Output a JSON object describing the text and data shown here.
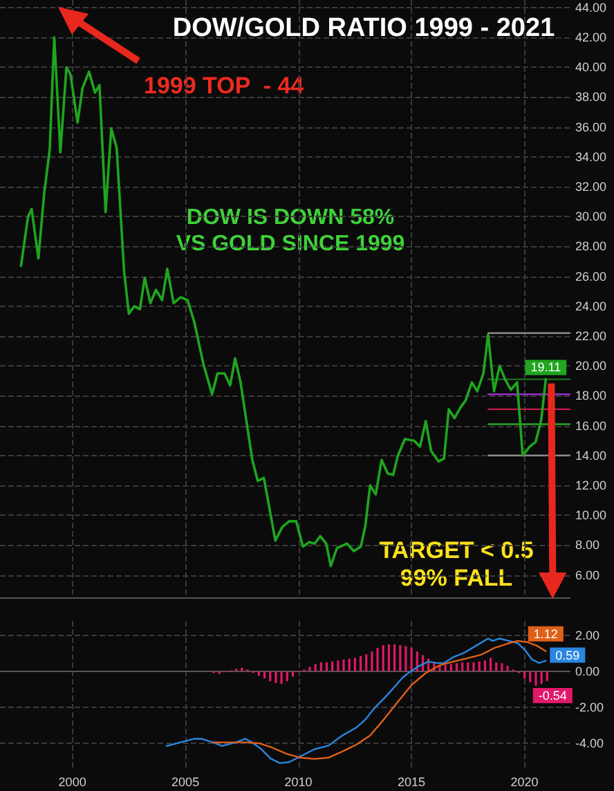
{
  "chart_data": [
    {
      "type": "line",
      "title": "DOW/GOLD RATIO 1999 - 2021",
      "annotations": [
        "1999 TOP  - 44",
        "DOW IS DOWN 58%\nVS GOLD SINCE 1999",
        {
          "text": "TARGET < 0.5\n99% FALL",
          "x": 2020.94,
          "y": 19.11
        }
      ],
      "series": [
        {
          "color": "#1fa51f",
          "x": [
            1997.73,
            1998.04,
            1998.2,
            1998.5,
            1998.75,
            1999.0,
            1999.2,
            1999.3,
            1999.47,
            1999.74,
            1999.92,
            2000.23,
            2000.45,
            2000.74,
            2001.0,
            2001.2,
            2001.47,
            2001.72,
            2001.96,
            2002.29,
            2002.5,
            2002.74,
            2002.99,
            2003.2,
            2003.45,
            2003.7,
            2003.97,
            2004.2,
            2004.48,
            2004.79,
            2005.1,
            2005.4,
            2005.8,
            2006.18,
            2006.42,
            2006.73,
            2006.98,
            2007.2,
            2007.44,
            2007.96,
            2008.2,
            2008.47,
            2008.98,
            2009.28,
            2009.59,
            2009.9,
            2010.2,
            2010.47,
            2010.72,
            2010.96,
            2011.23,
            2011.43,
            2011.7,
            2012.15,
            2012.45,
            2012.76,
            2012.96,
            2013.17,
            2013.42,
            2013.68,
            2013.95,
            2014.19,
            2014.4,
            2014.71,
            2015.11,
            2015.38,
            2015.63,
            2015.87,
            2016.2,
            2016.44,
            2016.65,
            2016.9,
            2017.16,
            2017.4,
            2017.67,
            2017.91,
            2018.18,
            2018.39,
            2018.65,
            2018.9,
            2019.14,
            2019.4,
            2019.67,
            2019.92,
            2020.23,
            2020.49,
            2020.74,
            2020.94
          ],
          "values": [
            26.7,
            30.0,
            30.5,
            27.2,
            31.5,
            34.5,
            42.0,
            39.2,
            34.3,
            40.0,
            39.5,
            36.3,
            38.6,
            39.7,
            38.3,
            38.8,
            30.3,
            35.9,
            34.6,
            26.3,
            23.5,
            24.0,
            23.8,
            25.9,
            24.2,
            25.1,
            24.4,
            26.5,
            24.2,
            24.6,
            24.4,
            22.9,
            20.1,
            18.1,
            19.5,
            19.5,
            18.7,
            20.5,
            18.9,
            13.7,
            12.3,
            12.5,
            8.3,
            9.2,
            9.6,
            9.6,
            7.9,
            8.2,
            8.1,
            8.6,
            8.1,
            6.6,
            7.8,
            8.1,
            7.6,
            7.9,
            9.3,
            12.0,
            11.4,
            13.7,
            12.8,
            12.7,
            14.0,
            15.1,
            15.0,
            14.6,
            16.3,
            14.3,
            13.6,
            13.8,
            17.1,
            16.5,
            17.2,
            17.7,
            18.9,
            18.3,
            19.5,
            22.1,
            18.3,
            20.0,
            19.1,
            18.4,
            18.9,
            14.0,
            14.6,
            14.9,
            16.4,
            19.11
          ],
          "value_labels": [
            null,
            null,
            null,
            null,
            null,
            null,
            null,
            null,
            null,
            null,
            null,
            null,
            null,
            null,
            null,
            null,
            null,
            null,
            null,
            null,
            null,
            null,
            null,
            null,
            null,
            null,
            null,
            null,
            null,
            null,
            null,
            null,
            null,
            null,
            null,
            null,
            null,
            null,
            null,
            null,
            null,
            null,
            null,
            null,
            null,
            null,
            null,
            null,
            null,
            null,
            null,
            null,
            null,
            null,
            null,
            null,
            null,
            null,
            null,
            null,
            null,
            null,
            null,
            null,
            null,
            null,
            null,
            null,
            null,
            null,
            null,
            null,
            null,
            null,
            null,
            null,
            null,
            null,
            null,
            null,
            null,
            null,
            null,
            null,
            null,
            null,
            null,
            "19.11"
          ]
        },
        {
          "color": "#8a8a8a",
          "x": [
            2018.4,
            2022.0
          ],
          "values": [
            22.2,
            22.2
          ]
        },
        {
          "color": "#1e6e1e",
          "x": [
            2018.4,
            2022.0
          ],
          "values": [
            19.1,
            19.1
          ]
        },
        {
          "color": "#9b30c8",
          "x": [
            2018.4,
            2022.0
          ],
          "values": [
            18.1,
            18.1
          ]
        },
        {
          "color": "#c8184a",
          "x": [
            2018.4,
            2022.0
          ],
          "values": [
            17.1,
            17.1
          ]
        },
        {
          "color": "#2aa52a",
          "x": [
            2018.4,
            2022.0
          ],
          "values": [
            16.1,
            16.1
          ]
        },
        {
          "color": "#8a8a8a",
          "x": [
            2018.4,
            2022.0
          ],
          "values": [
            14.0,
            14.0
          ]
        }
      ],
      "xlim": [
        1996.8,
        2022.0
      ],
      "xticks": [
        2000,
        2005,
        2010,
        2015,
        2020
      ],
      "ylim": [
        4.5,
        44.5
      ],
      "yticks": [
        {
          "value": 6,
          "label": "6.00"
        },
        {
          "value": 8,
          "label": "8.00"
        },
        {
          "value": 10,
          "label": "10.00"
        },
        {
          "value": 12,
          "label": "12.00"
        },
        {
          "value": 14,
          "label": "14.00"
        },
        {
          "value": 16,
          "label": "16.00"
        },
        {
          "value": 18,
          "label": "18.00"
        },
        {
          "value": 20,
          "label": "20.00"
        },
        {
          "value": 22,
          "label": "22.00"
        },
        {
          "value": 24,
          "label": "24.00"
        },
        {
          "value": 26,
          "label": "26.00"
        },
        {
          "value": 28,
          "label": "28.00"
        },
        {
          "value": 30,
          "label": "30.00"
        },
        {
          "value": 32,
          "label": "32.00"
        },
        {
          "value": 34,
          "label": "34.00"
        },
        {
          "value": 36,
          "label": "36.00"
        },
        {
          "value": 38,
          "label": "38.00"
        },
        {
          "value": 40,
          "label": "40.00"
        },
        {
          "value": 42,
          "label": "42.00"
        },
        {
          "value": 44,
          "label": "44.00"
        }
      ],
      "grid": true,
      "tick_labels": "y"
    },
    {
      "type": "line",
      "series": [
        {
          "type": "bar",
          "color": "#e0186a",
          "x": [
            2006.25,
            2006.5,
            2006.75,
            2007.0,
            2007.25,
            2007.5,
            2007.75,
            2008.0,
            2008.25,
            2008.5,
            2008.75,
            2009.0,
            2009.25,
            2009.5,
            2009.75,
            2010.0,
            2010.25,
            2010.5,
            2010.75,
            2011.0,
            2011.25,
            2011.5,
            2011.75,
            2012.0,
            2012.25,
            2012.5,
            2012.75,
            2013.0,
            2013.25,
            2013.5,
            2013.75,
            2014.0,
            2014.25,
            2014.5,
            2014.75,
            2015.0,
            2015.25,
            2015.5,
            2015.75,
            2016.0,
            2016.25,
            2016.5,
            2016.75,
            2017.0,
            2017.25,
            2017.5,
            2017.75,
            2018.0,
            2018.25,
            2018.5,
            2018.75,
            2019.0,
            2019.25,
            2019.5,
            2019.75,
            2020.0,
            2020.25,
            2020.5,
            2020.75,
            2021.0
          ],
          "values": [
            -0.1,
            -0.15,
            -0.05,
            0.05,
            0.15,
            0.2,
            0.1,
            -0.1,
            -0.25,
            -0.4,
            -0.55,
            -0.65,
            -0.7,
            -0.55,
            -0.3,
            -0.05,
            0.1,
            0.25,
            0.4,
            0.5,
            0.5,
            0.55,
            0.6,
            0.65,
            0.7,
            0.75,
            0.85,
            0.95,
            1.1,
            1.3,
            1.45,
            1.5,
            1.5,
            1.45,
            1.4,
            1.3,
            1.1,
            0.9,
            0.7,
            0.5,
            0.35,
            0.35,
            0.4,
            0.45,
            0.5,
            0.5,
            0.5,
            0.55,
            0.6,
            0.75,
            0.5,
            0.45,
            0.3,
            0.1,
            -0.1,
            -0.4,
            -0.6,
            -0.8,
            -0.7,
            -0.54
          ],
          "value_labels": [
            null,
            null,
            null,
            null,
            null,
            null,
            null,
            null,
            null,
            null,
            null,
            null,
            null,
            null,
            null,
            null,
            null,
            null,
            null,
            null,
            null,
            null,
            null,
            null,
            null,
            null,
            null,
            null,
            null,
            null,
            null,
            null,
            null,
            null,
            null,
            null,
            null,
            null,
            null,
            null,
            null,
            null,
            null,
            null,
            null,
            null,
            null,
            null,
            null,
            null,
            null,
            null,
            null,
            null,
            null,
            null,
            null,
            null,
            null,
            "-0.54"
          ]
        },
        {
          "color": "#2a86e0",
          "x": [
            2004.17,
            2004.78,
            2005.4,
            2005.7,
            2006.21,
            2006.62,
            2007.24,
            2007.65,
            2007.95,
            2008.36,
            2008.77,
            2009.18,
            2009.59,
            2010.1,
            2010.71,
            2011.33,
            2011.94,
            2012.56,
            2012.97,
            2013.37,
            2013.78,
            2014.19,
            2014.6,
            2014.91,
            2015.32,
            2015.73,
            2016.13,
            2016.44,
            2016.85,
            2017.36,
            2017.87,
            2018.39,
            2018.59,
            2018.9,
            2019.3,
            2019.71,
            2020.02,
            2020.33,
            2020.64,
            2020.94
          ],
          "values": [
            -4.15,
            -3.95,
            -3.75,
            -3.75,
            -3.95,
            -4.15,
            -3.95,
            -3.75,
            -3.95,
            -4.33,
            -4.85,
            -5.1,
            -5.05,
            -4.72,
            -4.33,
            -4.13,
            -3.57,
            -3.13,
            -2.67,
            -2.03,
            -1.52,
            -0.95,
            -0.36,
            -0.05,
            0.28,
            0.54,
            0.46,
            0.46,
            0.79,
            1.05,
            1.43,
            1.82,
            1.69,
            1.82,
            1.69,
            1.56,
            1.18,
            0.66,
            0.46,
            0.59
          ],
          "value_labels": [
            null,
            null,
            null,
            null,
            null,
            null,
            null,
            null,
            null,
            null,
            null,
            null,
            null,
            null,
            null,
            null,
            null,
            null,
            null,
            null,
            null,
            null,
            null,
            null,
            null,
            null,
            null,
            null,
            null,
            null,
            null,
            null,
            null,
            null,
            null,
            null,
            null,
            null,
            null,
            "0.59"
          ]
        },
        {
          "color": "#e0601a",
          "x": [
            2006.21,
            2007.65,
            2008.26,
            2008.87,
            2009.49,
            2010.1,
            2010.71,
            2011.33,
            2011.94,
            2012.56,
            2013.17,
            2013.78,
            2014.4,
            2015.01,
            2015.63,
            2016.24,
            2016.85,
            2017.46,
            2018.08,
            2018.69,
            2019.3,
            2019.71,
            2020.12,
            2020.53,
            2020.94
          ],
          "values": [
            -3.95,
            -3.95,
            -4.0,
            -4.26,
            -4.59,
            -4.8,
            -4.87,
            -4.8,
            -4.46,
            -4.08,
            -3.57,
            -2.67,
            -1.69,
            -0.75,
            -0.1,
            0.33,
            0.54,
            0.72,
            0.92,
            1.31,
            1.56,
            1.69,
            1.62,
            1.43,
            1.12
          ],
          "value_labels": [
            null,
            null,
            null,
            null,
            null,
            null,
            null,
            null,
            null,
            null,
            null,
            null,
            null,
            null,
            null,
            null,
            null,
            null,
            null,
            null,
            null,
            null,
            null,
            null,
            "1.12"
          ]
        }
      ],
      "xlim": [
        1996.8,
        2022.0
      ],
      "xticks": [
        2000,
        2005,
        2010,
        2015,
        2020
      ],
      "ylim": [
        -5.5,
        2.8
      ],
      "yticks": [
        {
          "value": -4,
          "label": "-4.00"
        },
        {
          "value": -2,
          "label": "-2.00"
        },
        {
          "value": 0,
          "label": "0.00"
        },
        {
          "value": 2,
          "label": "2.00"
        }
      ],
      "grid": true
    }
  ]
}
